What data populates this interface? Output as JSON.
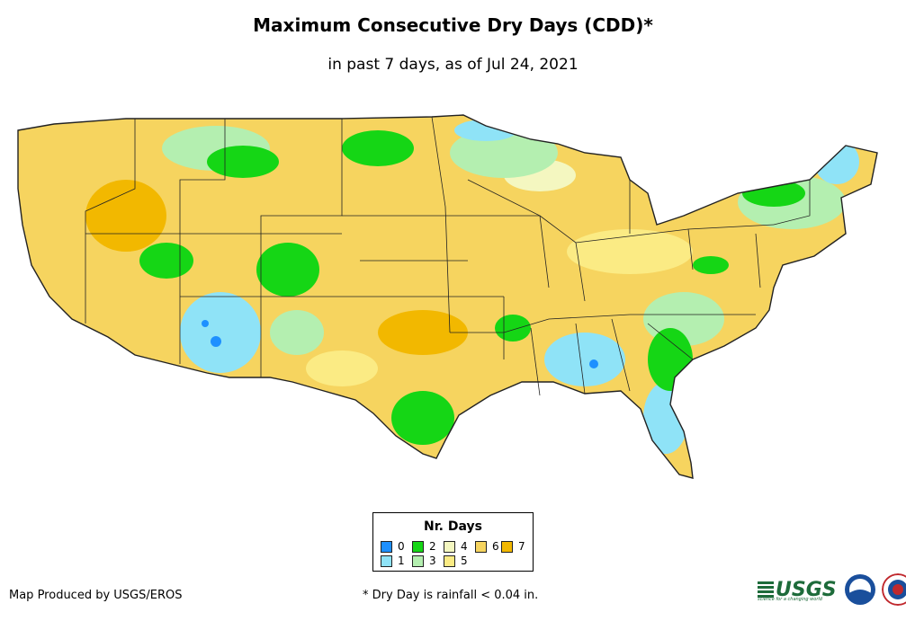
{
  "title": "Maximum Consecutive Dry Days (CDD)*",
  "subtitle": "in past 7 days, as of Jul 24, 2021",
  "legend": {
    "title": "Nr. Days",
    "items": [
      {
        "label": "0",
        "color": "#1e90ff"
      },
      {
        "label": "1",
        "color": "#8fe3f7"
      },
      {
        "label": "2",
        "color": "#15d615"
      },
      {
        "label": "3",
        "color": "#b4efb0"
      },
      {
        "label": "4",
        "color": "#f4f7c0"
      },
      {
        "label": "5",
        "color": "#fbeb84"
      },
      {
        "label": "6",
        "color": "#f6d45f"
      },
      {
        "label": "7",
        "color": "#f2b800"
      }
    ]
  },
  "footer": {
    "credit": "Map Produced by USGS/EROS",
    "note": "* Dry Day is rainfall < 0.04 in."
  },
  "logos": {
    "usgs": "USGS",
    "usgs_tagline": "science for a changing world",
    "noaa": "NOAA",
    "nws": "NWS"
  },
  "colors": {
    "base": "#f6d45f",
    "dark_base": "#f2b800",
    "wet_green": "#15d615",
    "light_green": "#b4efb0",
    "cyan": "#8fe3f7",
    "blue": "#1e90ff",
    "pale": "#f4f7c0",
    "light_yellow": "#fbeb84"
  }
}
